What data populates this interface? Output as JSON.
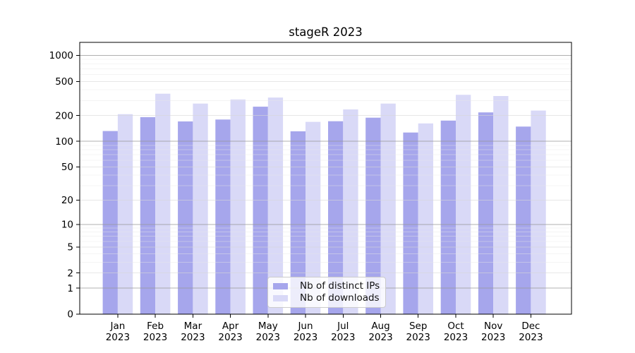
{
  "chart_data": {
    "type": "bar",
    "title": "stageR 2023",
    "categories": [
      "Jan",
      "Feb",
      "Mar",
      "Apr",
      "May",
      "Jun",
      "Jul",
      "Aug",
      "Sep",
      "Oct",
      "Nov",
      "Dec"
    ],
    "x_sub_label": "2023",
    "series": [
      {
        "name": "Nb of distinct IPs",
        "color": "#a6a6ec",
        "values": [
          132,
          192,
          171,
          180,
          254,
          131,
          172,
          189,
          127,
          175,
          218,
          149
        ]
      },
      {
        "name": "Nb of downloads",
        "color": "#d9d9f7",
        "values": [
          208,
          360,
          276,
          308,
          324,
          169,
          236,
          276,
          162,
          349,
          338,
          229
        ]
      }
    ],
    "scale": "log1p",
    "ylim": [
      0,
      1420
    ],
    "y_ticks": [
      1000,
      500,
      200,
      100,
      50,
      20,
      10,
      5,
      2,
      1,
      0
    ],
    "grid": {
      "on": true,
      "decade_lines": [
        1,
        10,
        100,
        1000
      ],
      "labeled_lines": [
        2,
        5,
        20,
        50,
        200,
        500
      ],
      "minor_lines": [
        3,
        4,
        6,
        7,
        8,
        9,
        30,
        40,
        60,
        70,
        80,
        90,
        300,
        400,
        600,
        700,
        800,
        900
      ],
      "decade_color": "rgba(150,150,150,0.75)",
      "labeled_color": "rgba(215,215,215,0.6)",
      "minor_color": "rgba(230,230,230,0.45)"
    },
    "legend": {
      "position": "lower center-left"
    },
    "axis_color": "#000000",
    "tick_label_color": "#000000",
    "background": "#ffffff"
  }
}
